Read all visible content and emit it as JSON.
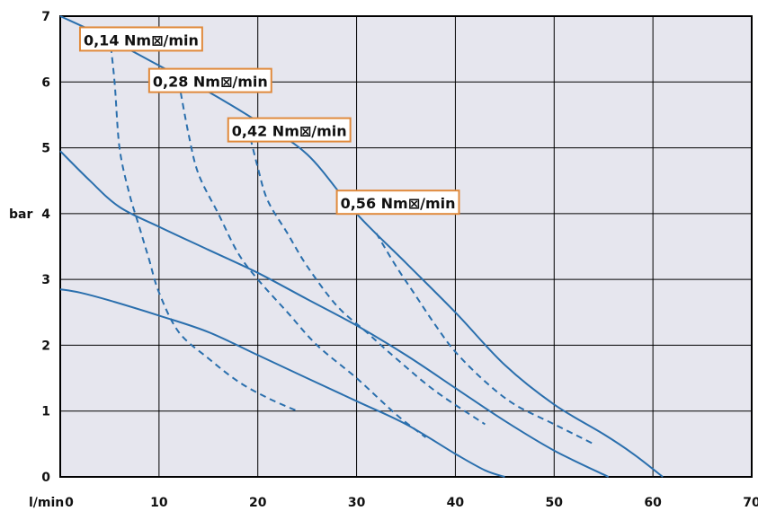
{
  "chart_data": {
    "type": "line",
    "ylabel": "bar",
    "xlabel": "l/min",
    "xlim": [
      0,
      70
    ],
    "ylim": [
      0,
      7
    ],
    "xticks": [
      0,
      10,
      20,
      30,
      40,
      50,
      60,
      70
    ],
    "yticks": [
      0,
      1,
      2,
      3,
      4,
      5,
      6,
      7
    ],
    "grid": true,
    "background": "#e6e6ee",
    "curve_color": "#2a6fad",
    "annotation_border": "#e08a3c",
    "series": [
      {
        "style": "solid",
        "points": [
          [
            0,
            2.85
          ],
          [
            2,
            2.8
          ],
          [
            5,
            2.68
          ],
          [
            10,
            2.45
          ],
          [
            15,
            2.2
          ],
          [
            20,
            1.85
          ],
          [
            25,
            1.5
          ],
          [
            30,
            1.15
          ],
          [
            35,
            0.8
          ],
          [
            40,
            0.35
          ],
          [
            43,
            0.1
          ],
          [
            45,
            0
          ]
        ]
      },
      {
        "style": "solid",
        "points": [
          [
            0,
            4.95
          ],
          [
            3,
            4.5
          ],
          [
            6,
            4.1
          ],
          [
            10,
            3.8
          ],
          [
            15,
            3.45
          ],
          [
            20,
            3.1
          ],
          [
            25,
            2.7
          ],
          [
            30,
            2.3
          ],
          [
            35,
            1.85
          ],
          [
            40,
            1.35
          ],
          [
            45,
            0.85
          ],
          [
            50,
            0.4
          ],
          [
            55.5,
            0
          ]
        ]
      },
      {
        "style": "solid",
        "points": [
          [
            0,
            7
          ],
          [
            5,
            6.65
          ],
          [
            10,
            6.25
          ],
          [
            15,
            5.85
          ],
          [
            20,
            5.4
          ],
          [
            25,
            4.9
          ],
          [
            30,
            4.0
          ],
          [
            35,
            3.25
          ],
          [
            40,
            2.5
          ],
          [
            45,
            1.7
          ],
          [
            50,
            1.1
          ],
          [
            55,
            0.65
          ],
          [
            58,
            0.35
          ],
          [
            61,
            0
          ]
        ]
      },
      {
        "style": "dashed",
        "points": [
          [
            5,
            6.7
          ],
          [
            5.5,
            6.0
          ],
          [
            6,
            5.0
          ],
          [
            7,
            4.3
          ],
          [
            8,
            3.8
          ],
          [
            9,
            3.3
          ],
          [
            10,
            2.8
          ],
          [
            12,
            2.2
          ],
          [
            15,
            1.8
          ],
          [
            18,
            1.45
          ],
          [
            21,
            1.2
          ],
          [
            24,
            1.0
          ]
        ]
      },
      {
        "style": "dashed",
        "points": [
          [
            12,
            6.0
          ],
          [
            13,
            5.2
          ],
          [
            14,
            4.6
          ],
          [
            16,
            4.0
          ],
          [
            18,
            3.4
          ],
          [
            20,
            3.0
          ],
          [
            23,
            2.5
          ],
          [
            26,
            2.0
          ],
          [
            30,
            1.5
          ],
          [
            34,
            0.95
          ],
          [
            37,
            0.6
          ]
        ]
      },
      {
        "style": "dashed",
        "points": [
          [
            19,
            5.3
          ],
          [
            20,
            4.7
          ],
          [
            21,
            4.2
          ],
          [
            23,
            3.7
          ],
          [
            25,
            3.2
          ],
          [
            28,
            2.6
          ],
          [
            31,
            2.2
          ],
          [
            34,
            1.8
          ],
          [
            38,
            1.3
          ],
          [
            43,
            0.8
          ]
        ]
      },
      {
        "style": "dashed",
        "points": [
          [
            32,
            3.7
          ],
          [
            34,
            3.2
          ],
          [
            36,
            2.75
          ],
          [
            38,
            2.3
          ],
          [
            40,
            1.9
          ],
          [
            43,
            1.45
          ],
          [
            46,
            1.1
          ],
          [
            50,
            0.8
          ],
          [
            54,
            0.5
          ]
        ]
      }
    ],
    "annotations": [
      {
        "text": "0,14 Nm⊠/min",
        "x": 2,
        "y": 6.53
      },
      {
        "text": "0,28 Nm⊠/min",
        "x": 9,
        "y": 5.9
      },
      {
        "text": "0,42 Nm⊠/min",
        "x": 17,
        "y": 5.15
      },
      {
        "text": "0,56 Nm⊠/min",
        "x": 28,
        "y": 4.05
      }
    ]
  }
}
